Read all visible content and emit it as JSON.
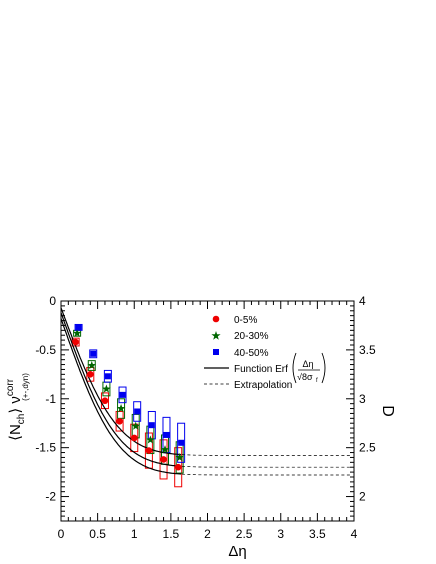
{
  "chart_data": {
    "type": "scatter",
    "xlabel": "Δη",
    "ylabel_main": "⟨N",
    "ylabel_sub": "ch",
    "ylabel_close": "⟩ ν",
    "ylabel_sup": "corr",
    "ylabel_sub2": "(+-,dyn)",
    "y2label": "D",
    "xlim": [
      0,
      4
    ],
    "ylim": [
      -2.25,
      0
    ],
    "y2lim": [
      1.75,
      4
    ],
    "x_ticks": [
      "0",
      "0.5",
      "1",
      "1.5",
      "2",
      "2.5",
      "3",
      "3.5",
      "4"
    ],
    "y_ticks": [
      "0",
      "-0.5",
      "-1",
      "-1.5",
      "-2"
    ],
    "y2_ticks": [
      "4",
      "3.5",
      "3",
      "2.5",
      "2"
    ],
    "legend": {
      "position": "top-right",
      "entries": [
        {
          "label": "0-5%",
          "marker": "circle",
          "color": "#ee0000"
        },
        {
          "label": "20-30%",
          "marker": "star",
          "color": "#006600"
        },
        {
          "label": "40-50%",
          "marker": "square",
          "color": "#0000ee"
        },
        {
          "label": "Function Erf",
          "frac_num": "Δη",
          "frac_den": "√8σ",
          "frac_den_sub": "f",
          "line": "solid"
        },
        {
          "label": "Extrapolation",
          "line": "dashed"
        }
      ]
    },
    "series": [
      {
        "name": "0-5%",
        "marker": "circle",
        "color": "#ee0000",
        "x": [
          0.2,
          0.4,
          0.6,
          0.8,
          1.0,
          1.2,
          1.4,
          1.6
        ],
        "y": [
          -0.42,
          -0.75,
          -1.02,
          -1.23,
          -1.4,
          -1.53,
          -1.62,
          -1.7
        ],
        "sys": [
          0.04,
          0.07,
          0.08,
          0.1,
          0.14,
          0.18,
          0.2,
          0.2
        ]
      },
      {
        "name": "20-30%",
        "marker": "star",
        "color": "#006600",
        "x": [
          0.22,
          0.42,
          0.62,
          0.82,
          1.02,
          1.22,
          1.42,
          1.62
        ],
        "y": [
          -0.33,
          -0.66,
          -0.9,
          -1.1,
          -1.28,
          -1.42,
          -1.52,
          -1.6
        ],
        "sys": [
          0.03,
          0.05,
          0.07,
          0.1,
          0.12,
          0.14,
          0.15,
          0.16
        ]
      },
      {
        "name": "40-50%",
        "marker": "square",
        "color": "#0000ee",
        "x": [
          0.24,
          0.44,
          0.64,
          0.84,
          1.04,
          1.24,
          1.44,
          1.64
        ],
        "y": [
          -0.27,
          -0.54,
          -0.77,
          -0.96,
          -1.13,
          -1.27,
          -1.37,
          -1.45
        ],
        "sys": [
          0.03,
          0.04,
          0.06,
          0.08,
          0.1,
          0.14,
          0.18,
          0.2
        ]
      }
    ],
    "fits": [
      {
        "y0": -0.18,
        "yinf": -1.78,
        "w": 0.85
      },
      {
        "y0": -0.12,
        "yinf": -1.7,
        "w": 0.85
      },
      {
        "y0": -0.07,
        "yinf": -1.58,
        "w": 0.85
      }
    ],
    "fit_end": 1.65
  }
}
